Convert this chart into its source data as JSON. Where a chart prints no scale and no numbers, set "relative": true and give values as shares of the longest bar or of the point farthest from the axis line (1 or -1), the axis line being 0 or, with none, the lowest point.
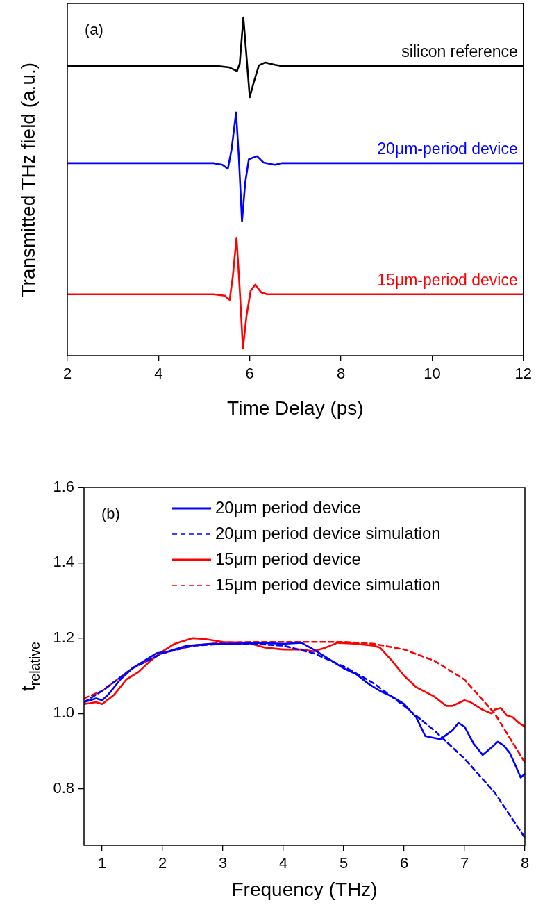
{
  "chart_data": [
    {
      "type": "line",
      "xlabel": "Time Delay (ps)",
      "ylabel": "Transmitted THz field (a.u.)",
      "relative": true,
      "xlim": [
        2,
        12
      ],
      "xticks": [
        2,
        4,
        6,
        8,
        10,
        12
      ],
      "grid": false,
      "legend": false,
      "line_style": "solid",
      "annotations": [
        "(a)"
      ],
      "series": [
        {
          "name": "silicon reference",
          "color": "#000000",
          "x": [
            2,
            5.3,
            5.55,
            5.72,
            5.78,
            5.86,
            5.93,
            6.0,
            6.08,
            6.2,
            6.34,
            6.55,
            6.71,
            12
          ],
          "values": [
            0.853,
            0.853,
            0.849,
            0.838,
            0.86,
            1.0,
            0.88,
            0.759,
            0.8,
            0.855,
            0.864,
            0.857,
            0.853,
            0.853
          ]
        },
        {
          "name": "20μm-period device",
          "color": "#0000ff",
          "x": [
            2,
            5.2,
            5.4,
            5.52,
            5.6,
            5.7,
            5.76,
            5.83,
            5.9,
            5.98,
            6.16,
            6.3,
            6.55,
            6.7,
            12
          ],
          "values": [
            0.56,
            0.56,
            0.555,
            0.543,
            0.6,
            0.713,
            0.58,
            0.384,
            0.5,
            0.572,
            0.581,
            0.562,
            0.555,
            0.56,
            0.56
          ]
        },
        {
          "name": "15μm-period device",
          "color": "#ff0000",
          "x": [
            2,
            5.2,
            5.45,
            5.56,
            5.63,
            5.71,
            5.78,
            5.85,
            5.93,
            6.02,
            6.12,
            6.25,
            6.38,
            12
          ],
          "values": [
            0.164,
            0.164,
            0.16,
            0.147,
            0.22,
            0.335,
            0.18,
            0,
            0.1,
            0.175,
            0.193,
            0.17,
            0.164,
            0.164
          ]
        }
      ]
    },
    {
      "type": "line",
      "xlabel": "Frequency (THz)",
      "ylabel": "t$_{relative}$",
      "xlim": [
        0.7,
        8
      ],
      "xticks": [
        1,
        2,
        3,
        4,
        5,
        6,
        7,
        8
      ],
      "ylim": [
        0.65,
        1.6
      ],
      "yticks": [
        0.8,
        {
          "value": 1.0,
          "label": "1.0"
        },
        1.2,
        1.4,
        1.6
      ],
      "grid": false,
      "legend": "top",
      "annotations": [
        "(b)"
      ],
      "series": [
        {
          "name": "20μm period device",
          "color": "#0000ff",
          "line_style": "solid",
          "x": [
            0.7,
            0.8,
            0.9,
            1.0,
            1.1,
            1.3,
            1.5,
            1.7,
            1.9,
            2.1,
            2.4,
            2.8,
            3.2,
            3.6,
            4.0,
            4.3,
            4.5,
            4.7,
            4.9,
            5.0,
            5.2,
            5.4,
            5.6,
            5.8,
            6.0,
            6.2,
            6.35,
            6.5,
            6.6,
            6.8,
            6.9,
            7.0,
            7.15,
            7.3,
            7.45,
            7.55,
            7.65,
            7.75,
            7.85,
            7.93,
            8.0
          ],
          "values": [
            1.03,
            1.035,
            1.04,
            1.035,
            1.05,
            1.09,
            1.12,
            1.14,
            1.16,
            1.165,
            1.18,
            1.185,
            1.185,
            1.188,
            1.185,
            1.188,
            1.17,
            1.15,
            1.13,
            1.12,
            1.105,
            1.08,
            1.06,
            1.045,
            1.025,
            0.99,
            0.94,
            0.935,
            0.932,
            0.955,
            0.975,
            0.965,
            0.92,
            0.89,
            0.91,
            0.925,
            0.915,
            0.895,
            0.86,
            0.83,
            0.84
          ]
        },
        {
          "name": "20μm period device simulation",
          "color": "#0000ff",
          "line_style": "dashed",
          "x": [
            0.7,
            1,
            1.5,
            2,
            2.5,
            3,
            3.5,
            4,
            4.5,
            5,
            5.5,
            6,
            6.5,
            7,
            7.5,
            8
          ],
          "values": [
            1.03,
            1.06,
            1.12,
            1.16,
            1.18,
            1.185,
            1.185,
            1.18,
            1.16,
            1.125,
            1.08,
            1.02,
            0.955,
            0.88,
            0.79,
            0.67
          ]
        },
        {
          "name": "15μm period device",
          "color": "#ff0000",
          "line_style": "solid",
          "x": [
            0.7,
            0.9,
            1.0,
            1.2,
            1.4,
            1.6,
            1.8,
            2.0,
            2.2,
            2.5,
            2.7,
            3.0,
            3.4,
            3.7,
            4.0,
            4.3,
            4.5,
            4.7,
            4.9,
            5.2,
            5.5,
            5.6,
            5.8,
            6.0,
            6.2,
            6.5,
            6.7,
            6.8,
            7.0,
            7.1,
            7.3,
            7.45,
            7.5,
            7.6,
            7.7,
            7.8,
            7.9,
            8.0
          ],
          "values": [
            1.025,
            1.03,
            1.025,
            1.05,
            1.09,
            1.11,
            1.14,
            1.165,
            1.185,
            1.2,
            1.198,
            1.19,
            1.188,
            1.175,
            1.17,
            1.17,
            1.165,
            1.175,
            1.188,
            1.185,
            1.18,
            1.175,
            1.14,
            1.1,
            1.07,
            1.045,
            1.02,
            1.02,
            1.035,
            1.03,
            1.01,
            1.0,
            1.01,
            1.015,
            0.995,
            0.99,
            0.975,
            0.965
          ]
        },
        {
          "name": "15μm period device simulation",
          "color": "#ff0000",
          "line_style": "dashed",
          "x": [
            0.7,
            1,
            1.5,
            2,
            2.5,
            3,
            3.5,
            4,
            4.5,
            5,
            5.5,
            6,
            6.5,
            7,
            7.5,
            8
          ],
          "values": [
            1.04,
            1.06,
            1.12,
            1.16,
            1.18,
            1.188,
            1.19,
            1.19,
            1.19,
            1.19,
            1.185,
            1.17,
            1.14,
            1.09,
            1.0,
            0.87
          ]
        }
      ]
    }
  ]
}
